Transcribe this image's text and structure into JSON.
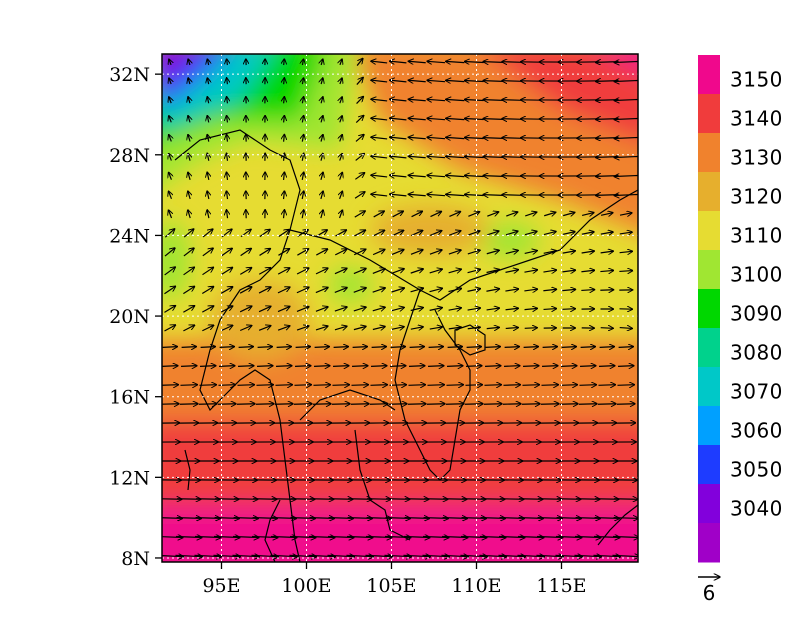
{
  "map": {
    "lon_ticks": [
      "95E",
      "100E",
      "105E",
      "110E",
      "115E"
    ],
    "lat_ticks": [
      "8N",
      "12N",
      "16N",
      "20N",
      "24N",
      "28N",
      "32N"
    ],
    "lon_values": [
      95,
      100,
      105,
      110,
      115
    ],
    "lat_values": [
      8,
      12,
      16,
      20,
      24,
      28,
      32
    ],
    "lon_range": [
      91.5,
      119.5
    ],
    "lat_range": [
      7.8,
      33
    ]
  },
  "colorbar": {
    "labels": [
      "3150",
      "3140",
      "3130",
      "3120",
      "3110",
      "3100",
      "3090",
      "3080",
      "3070",
      "3060",
      "3050",
      "3040"
    ],
    "colors": [
      "#f0088c",
      "#f03c3c",
      "#f0822d",
      "#e6af2d",
      "#e6dc32",
      "#a0e632",
      "#00d700",
      "#00d28c",
      "#00c8c8",
      "#00a0ff",
      "#1e3cff",
      "#8200dc",
      "#a000c8"
    ]
  },
  "reference_vector": {
    "label": "6"
  }
}
